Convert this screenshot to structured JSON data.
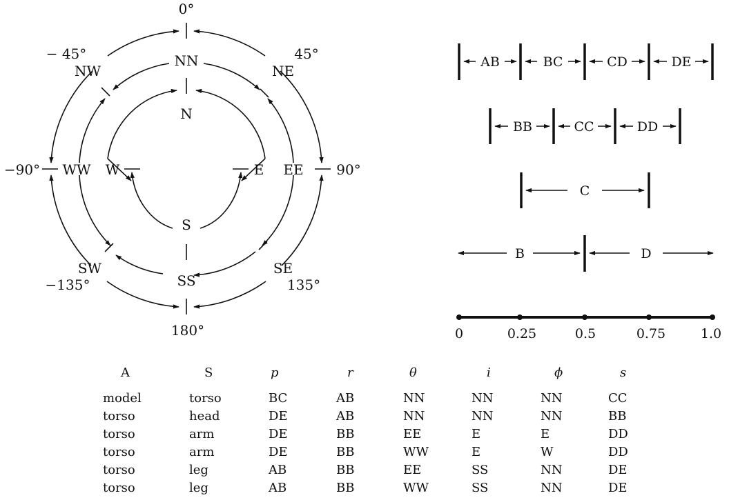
{
  "compass": {
    "angles": {
      "top": "0°",
      "left": "−90°",
      "right": "90°",
      "bottom": "180°",
      "top_left": "− 45°",
      "top_right": "45°",
      "bottom_left": "−135°",
      "bottom_right": "135°"
    },
    "outer": {
      "nw": "NW",
      "ne": "NE",
      "sw": "SW",
      "se": "SE",
      "ww": "WW",
      "ee": "EE"
    },
    "middle": {
      "nn": "NN",
      "ss": "SS",
      "w": "W",
      "e": "E"
    },
    "inner": {
      "n": "N",
      "s": "S"
    }
  },
  "intervals": {
    "row1": [
      "AB",
      "BC",
      "CD",
      "DE"
    ],
    "row2": [
      "BB",
      "CC",
      "DD"
    ],
    "row3": [
      "C"
    ],
    "row4": [
      "B",
      "D"
    ],
    "scale": [
      "0",
      "0.25",
      "0.5",
      "0.75",
      "1.0"
    ]
  },
  "table": {
    "headers": [
      "A",
      "S",
      "p",
      "r",
      "θ",
      "i",
      "ϕ",
      "s"
    ],
    "rows": [
      [
        "model",
        "torso",
        "BC",
        "AB",
        "NN",
        "NN",
        "NN",
        "CC"
      ],
      [
        "torso",
        "head",
        "DE",
        "AB",
        "NN",
        "NN",
        "NN",
        "BB"
      ],
      [
        "torso",
        "arm",
        "DE",
        "BB",
        "EE",
        "E",
        "E",
        "DD"
      ],
      [
        "torso",
        "arm",
        "DE",
        "BB",
        "WW",
        "E",
        "W",
        "DD"
      ],
      [
        "torso",
        "leg",
        "AB",
        "BB",
        "EE",
        "SS",
        "NN",
        "DE"
      ],
      [
        "torso",
        "leg",
        "AB",
        "BB",
        "WW",
        "SS",
        "NN",
        "DE"
      ]
    ]
  }
}
